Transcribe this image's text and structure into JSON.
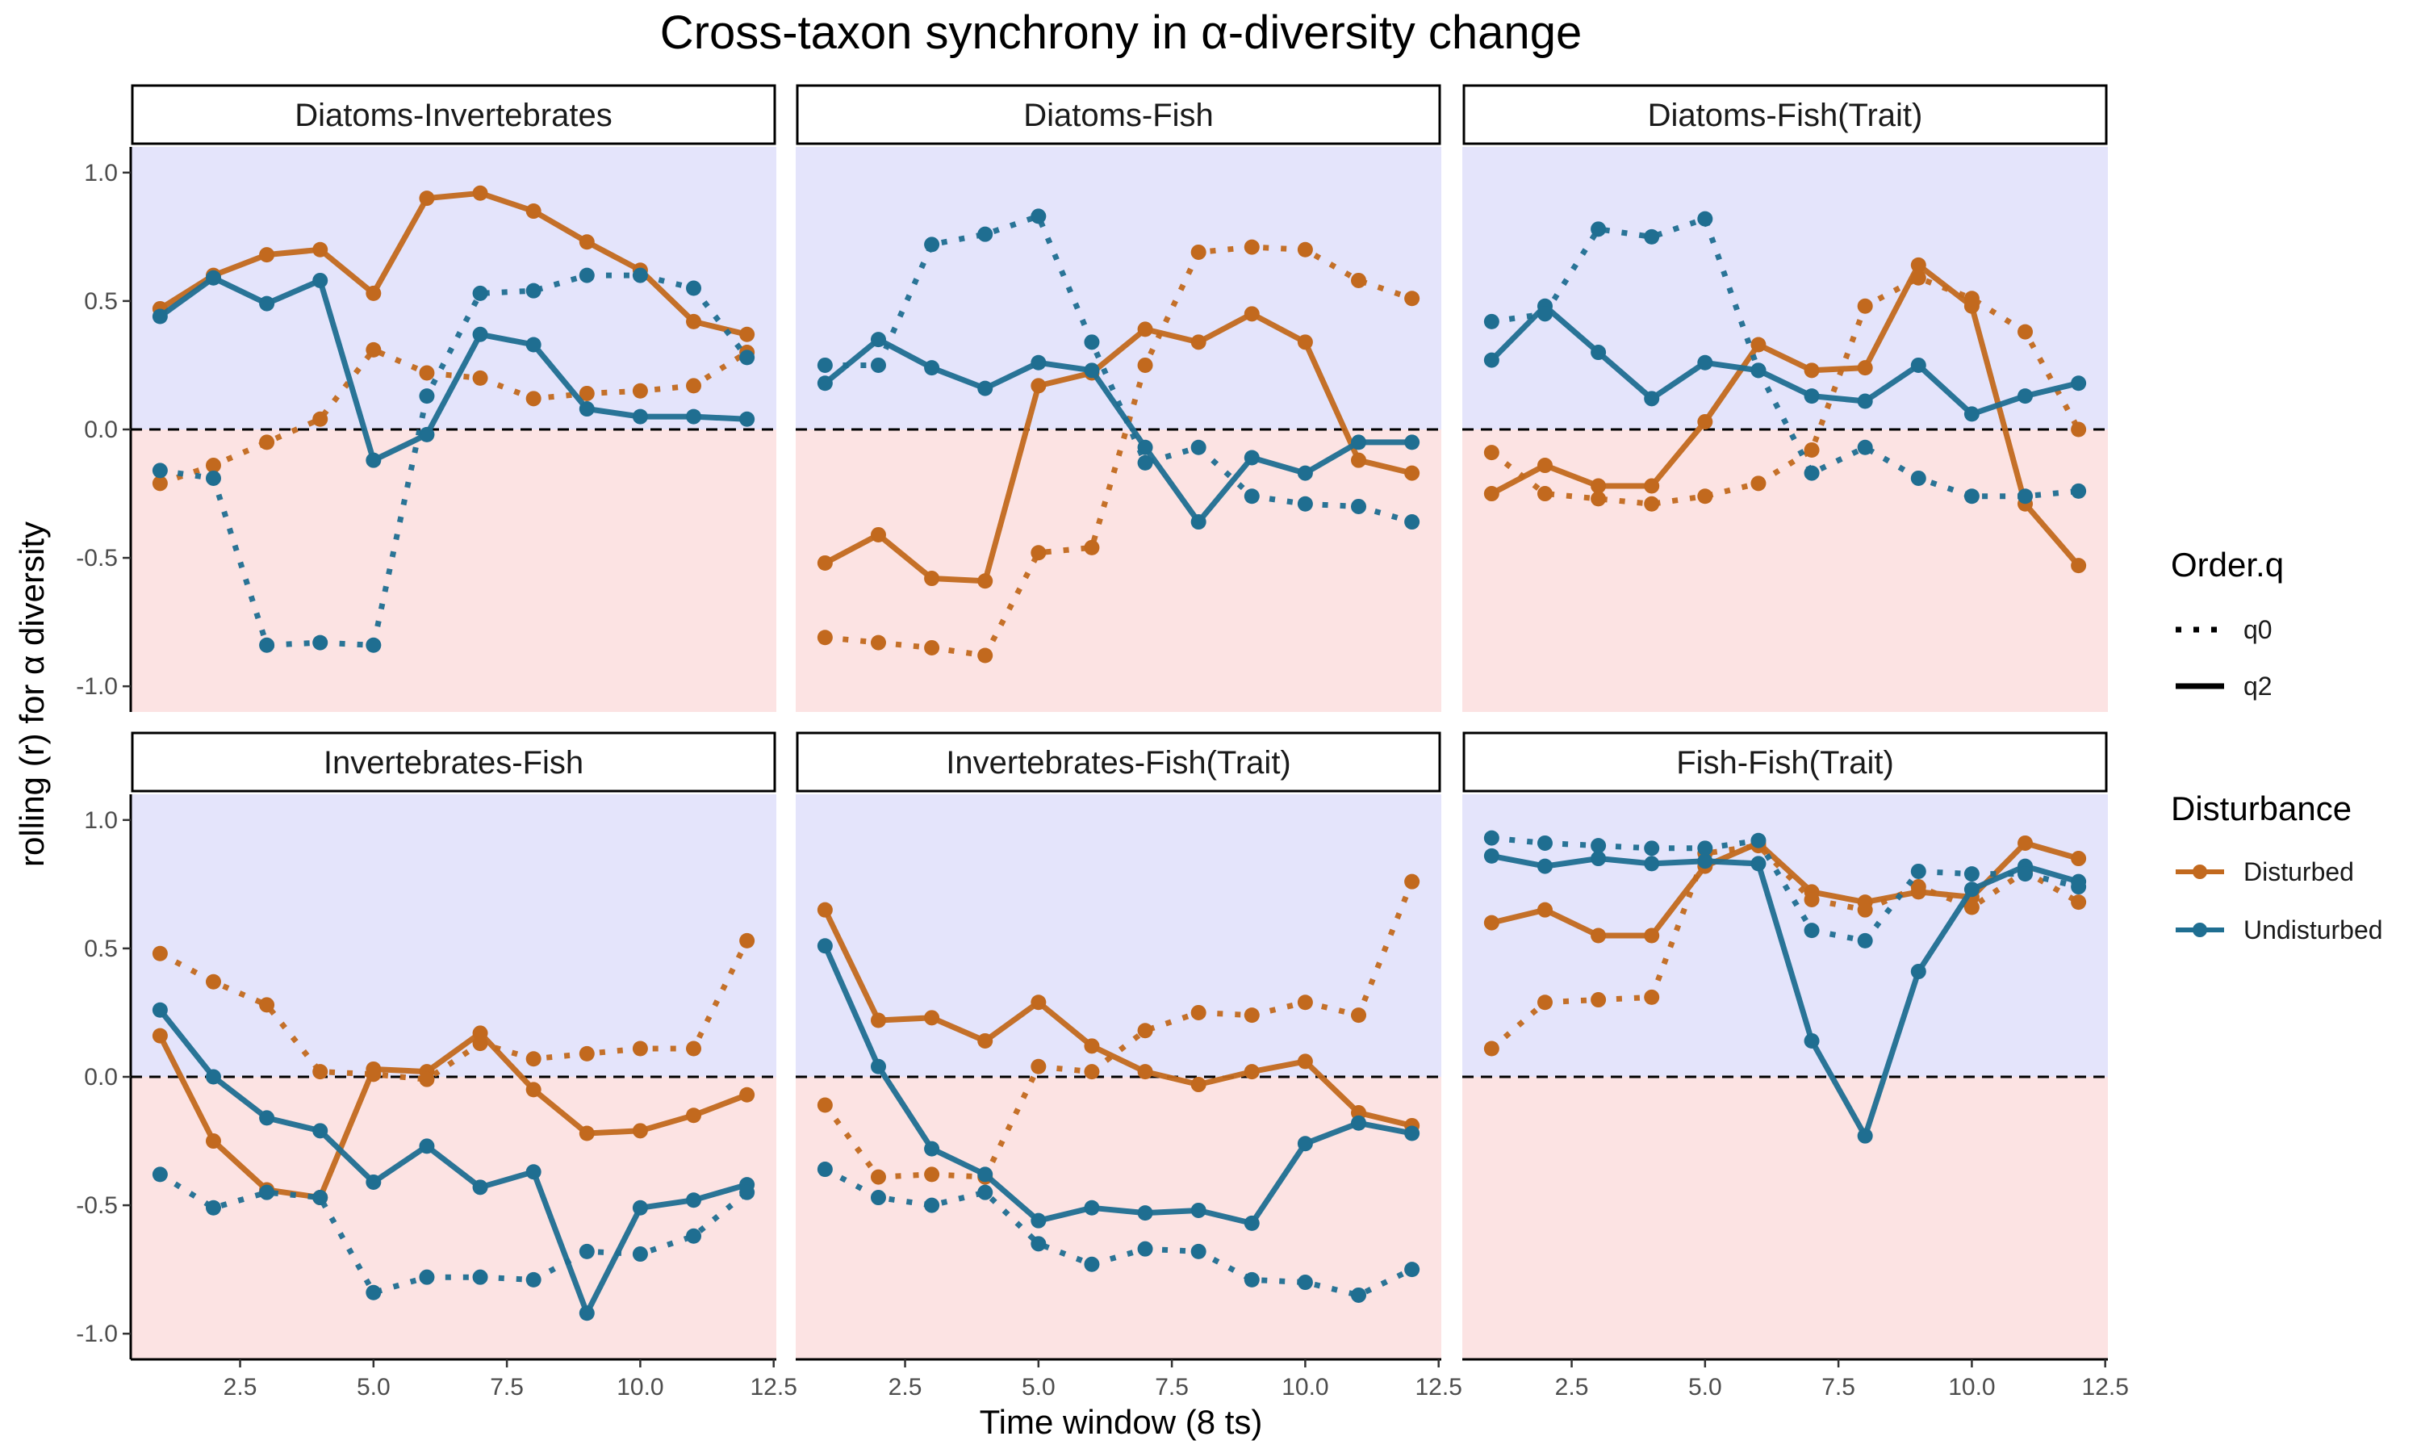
{
  "chart_data": {
    "type": "line",
    "title": "Cross-taxon synchrony in α-diversity change",
    "xlabel": "Time window (8 ts)",
    "ylabel": "rolling (r) for α diversity",
    "xlim": [
      0.45,
      12.55
    ],
    "ylim": [
      -1.1,
      1.1
    ],
    "xticks": [
      "2.5",
      "5.0",
      "7.5",
      "10.0",
      "12.5"
    ],
    "yticks": [
      "-1.0",
      "-0.5",
      "0.0",
      "0.5",
      "1.0"
    ],
    "reference_line": 0,
    "x": [
      1,
      2,
      3,
      4,
      5,
      6,
      7,
      8,
      9,
      10,
      11,
      12
    ],
    "legend": {
      "order_title": "Order.q",
      "order_items": [
        "q0",
        "q2"
      ],
      "disturbance_title": "Disturbance",
      "disturbance_items": [
        "Disturbed",
        "Undisturbed"
      ]
    },
    "colors": {
      "disturbed": "#c2691e",
      "undisturbed": "#1f6e91",
      "positive_band": "#e4e4fb",
      "negative_band": "#fce3e3"
    },
    "panels": [
      {
        "title": "Diatoms-Invertebrates",
        "series": [
          {
            "disturbance": "Disturbed",
            "order": "q2",
            "values": [
              0.47,
              0.6,
              0.68,
              0.7,
              0.53,
              0.9,
              0.92,
              0.85,
              0.73,
              0.62,
              0.42,
              0.37
            ]
          },
          {
            "disturbance": "Disturbed",
            "order": "q0",
            "values": [
              -0.21,
              -0.14,
              -0.05,
              0.04,
              0.31,
              0.22,
              0.2,
              0.12,
              0.14,
              0.15,
              0.17,
              0.3
            ]
          },
          {
            "disturbance": "Undisturbed",
            "order": "q2",
            "values": [
              0.44,
              0.59,
              0.49,
              0.58,
              -0.12,
              -0.02,
              0.37,
              0.33,
              0.08,
              0.05,
              0.05,
              0.04
            ]
          },
          {
            "disturbance": "Undisturbed",
            "order": "q0",
            "values": [
              -0.16,
              -0.19,
              -0.84,
              -0.83,
              -0.84,
              0.13,
              0.53,
              0.54,
              0.6,
              0.6,
              0.55,
              0.28
            ]
          }
        ]
      },
      {
        "title": "Diatoms-Fish",
        "series": [
          {
            "disturbance": "Disturbed",
            "order": "q2",
            "values": [
              -0.52,
              -0.41,
              -0.58,
              -0.59,
              0.17,
              0.22,
              0.39,
              0.34,
              0.45,
              0.34,
              -0.12,
              -0.17
            ]
          },
          {
            "disturbance": "Disturbed",
            "order": "q0",
            "values": [
              -0.81,
              -0.83,
              -0.85,
              -0.88,
              -0.48,
              -0.46,
              0.25,
              0.69,
              0.71,
              0.7,
              0.58,
              0.51
            ]
          },
          {
            "disturbance": "Undisturbed",
            "order": "q2",
            "values": [
              0.18,
              0.35,
              0.24,
              0.16,
              0.26,
              0.23,
              -0.07,
              -0.36,
              -0.11,
              -0.17,
              -0.05,
              -0.05
            ]
          },
          {
            "disturbance": "Undisturbed",
            "order": "q0",
            "values": [
              0.25,
              0.25,
              0.72,
              0.76,
              0.83,
              0.34,
              -0.13,
              -0.07,
              -0.26,
              -0.29,
              -0.3,
              -0.36
            ]
          }
        ]
      },
      {
        "title": "Diatoms-Fish(Trait)",
        "series": [
          {
            "disturbance": "Disturbed",
            "order": "q2",
            "values": [
              -0.25,
              -0.14,
              -0.22,
              -0.22,
              0.03,
              0.33,
              0.23,
              0.24,
              0.64,
              0.48,
              -0.29,
              -0.53
            ]
          },
          {
            "disturbance": "Disturbed",
            "order": "q0",
            "values": [
              -0.09,
              -0.25,
              -0.27,
              -0.29,
              -0.26,
              -0.21,
              -0.08,
              0.48,
              0.59,
              0.51,
              0.38,
              0.0
            ]
          },
          {
            "disturbance": "Undisturbed",
            "order": "q2",
            "values": [
              0.27,
              0.48,
              0.3,
              0.12,
              0.26,
              0.23,
              0.13,
              0.11,
              0.25,
              0.06,
              0.13,
              0.18
            ]
          },
          {
            "disturbance": "Undisturbed",
            "order": "q0",
            "values": [
              0.42,
              0.45,
              0.78,
              0.75,
              0.82,
              0.23,
              -0.17,
              -0.07,
              -0.19,
              -0.26,
              -0.26,
              -0.24
            ]
          }
        ]
      },
      {
        "title": "Invertebrates-Fish",
        "series": [
          {
            "disturbance": "Disturbed",
            "order": "q2",
            "values": [
              0.16,
              -0.25,
              -0.44,
              -0.47,
              0.03,
              0.02,
              0.17,
              -0.05,
              -0.22,
              -0.21,
              -0.15,
              -0.07
            ]
          },
          {
            "disturbance": "Disturbed",
            "order": "q0",
            "values": [
              0.48,
              0.37,
              0.28,
              0.02,
              0.01,
              -0.01,
              0.13,
              0.07,
              0.09,
              0.11,
              0.11,
              0.53
            ]
          },
          {
            "disturbance": "Undisturbed",
            "order": "q2",
            "values": [
              0.26,
              0.0,
              -0.16,
              -0.21,
              -0.41,
              -0.27,
              -0.43,
              -0.37,
              -0.92,
              -0.51,
              -0.48,
              -0.42
            ]
          },
          {
            "disturbance": "Undisturbed",
            "order": "q0",
            "values": [
              -0.38,
              -0.51,
              -0.45,
              -0.47,
              -0.84,
              -0.78,
              -0.78,
              -0.79,
              -0.68,
              -0.69,
              -0.62,
              -0.45
            ]
          }
        ]
      },
      {
        "title": "Invertebrates-Fish(Trait)",
        "series": [
          {
            "disturbance": "Disturbed",
            "order": "q2",
            "values": [
              0.65,
              0.22,
              0.23,
              0.14,
              0.29,
              0.12,
              0.02,
              -0.03,
              0.02,
              0.06,
              -0.14,
              -0.19
            ]
          },
          {
            "disturbance": "Disturbed",
            "order": "q0",
            "values": [
              -0.11,
              -0.39,
              -0.38,
              -0.39,
              0.04,
              0.02,
              0.18,
              0.25,
              0.24,
              0.29,
              0.24,
              0.76
            ]
          },
          {
            "disturbance": "Undisturbed",
            "order": "q2",
            "values": [
              0.51,
              0.04,
              -0.28,
              -0.38,
              -0.56,
              -0.51,
              -0.53,
              -0.52,
              -0.57,
              -0.26,
              -0.18,
              -0.22
            ]
          },
          {
            "disturbance": "Undisturbed",
            "order": "q0",
            "values": [
              -0.36,
              -0.47,
              -0.5,
              -0.45,
              -0.65,
              -0.73,
              -0.67,
              -0.68,
              -0.79,
              -0.8,
              -0.85,
              -0.75
            ]
          }
        ]
      },
      {
        "title": "Fish-Fish(Trait)",
        "series": [
          {
            "disturbance": "Disturbed",
            "order": "q2",
            "values": [
              0.6,
              0.65,
              0.55,
              0.55,
              0.82,
              0.91,
              0.72,
              0.68,
              0.72,
              0.7,
              0.91,
              0.85
            ]
          },
          {
            "disturbance": "Disturbed",
            "order": "q0",
            "values": [
              0.11,
              0.29,
              0.3,
              0.31,
              0.87,
              0.9,
              0.69,
              0.65,
              0.74,
              0.66,
              0.8,
              0.68
            ]
          },
          {
            "disturbance": "Undisturbed",
            "order": "q2",
            "values": [
              0.86,
              0.82,
              0.85,
              0.83,
              0.84,
              0.83,
              0.14,
              -0.23,
              0.41,
              0.73,
              0.82,
              0.76
            ]
          },
          {
            "disturbance": "Undisturbed",
            "order": "q0",
            "values": [
              0.93,
              0.91,
              0.9,
              0.89,
              0.89,
              0.92,
              0.57,
              0.53,
              0.8,
              0.79,
              0.79,
              0.74
            ]
          }
        ]
      }
    ]
  }
}
